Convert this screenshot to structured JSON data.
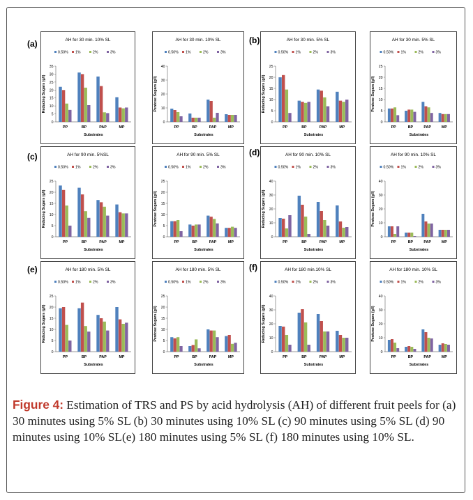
{
  "colors": {
    "s050": "#4f81bd",
    "s1": "#c0504d",
    "s2": "#9bbb59",
    "s3": "#8064a2"
  },
  "caption": {
    "label": "Figure 4:",
    "text": " Estimation of TRS and PS by acid hydrolysis (AH) of different fruit peels for (a) 30 minutes using 5% SL (b) 30 minutes using 10% SL (c) 90 minutes using 5% SL (d) 90 minutes using 10% SL(e) 180 minutes using 5% SL (f) 180 minutes using 10% SL."
  },
  "panel_labels": [
    "(a)",
    "(b)",
    "(c)",
    "(d)",
    "(e)",
    "(f)"
  ],
  "chart_data": [
    {
      "type": "bar",
      "title": "AH for 30 min. 10% SL",
      "ylabel": "Reducing Sugars (g/l)",
      "xlabel": "Substrates",
      "categories": [
        "PP",
        "BP",
        "PAP",
        "MP"
      ],
      "ylim": [
        0,
        35
      ],
      "yticks": [
        0,
        5,
        10,
        15,
        20,
        25,
        30,
        35
      ],
      "series": [
        {
          "name": "0.50%",
          "values": [
            22,
            31,
            28.5,
            15.5
          ]
        },
        {
          "name": "1%",
          "values": [
            20,
            30,
            22.5,
            9
          ]
        },
        {
          "name": "2%",
          "values": [
            11.5,
            21.5,
            6,
            8.5
          ]
        },
        {
          "name": "3%",
          "values": [
            7.5,
            10.5,
            5.5,
            9
          ]
        }
      ]
    },
    {
      "type": "bar",
      "title": "AH for 30 min. 10% SL",
      "ylabel": "Pentose Sugars (g/l)",
      "xlabel": "Substrates",
      "categories": [
        "PP",
        "BP",
        "PAP",
        "MP"
      ],
      "ylim": [
        0,
        40
      ],
      "yticks": [
        0,
        10,
        20,
        30,
        40
      ],
      "series": [
        {
          "name": "0.50%",
          "values": [
            9.5,
            6,
            16,
            5.5
          ]
        },
        {
          "name": "1%",
          "values": [
            8.5,
            3,
            15,
            5
          ]
        },
        {
          "name": "2%",
          "values": [
            7,
            3,
            3,
            5
          ]
        },
        {
          "name": "3%",
          "values": [
            4,
            3,
            6.5,
            5
          ]
        }
      ]
    },
    {
      "type": "bar",
      "title": "AH for 30 min.  5% SL",
      "ylabel": "Reducing Sugars (g/l)",
      "xlabel": "Substrates",
      "categories": [
        "PP",
        "BP",
        "PAP",
        "MP"
      ],
      "ylim": [
        0,
        25
      ],
      "yticks": [
        0,
        5,
        10,
        15,
        20,
        25
      ],
      "series": [
        {
          "name": "0.50%",
          "values": [
            20,
            9.5,
            14.5,
            13.5
          ]
        },
        {
          "name": "1%",
          "values": [
            21,
            9,
            14,
            9.5
          ]
        },
        {
          "name": "2%",
          "values": [
            14.5,
            8.5,
            11,
            9
          ]
        },
        {
          "name": "3%",
          "values": [
            4,
            9,
            7,
            10
          ]
        }
      ]
    },
    {
      "type": "bar",
      "title": "AH for 30 min.  5% SL",
      "ylabel": "Pentose Sugars (g/l)",
      "xlabel": "Substrates",
      "categories": [
        "PP",
        "BP",
        "PAP",
        "MP"
      ],
      "ylim": [
        0,
        25
      ],
      "yticks": [
        0,
        5,
        10,
        15,
        20,
        25
      ],
      "series": [
        {
          "name": "0.50%",
          "values": [
            6,
            5,
            9,
            4
          ]
        },
        {
          "name": "1%",
          "values": [
            6,
            5.5,
            7,
            3.5
          ]
        },
        {
          "name": "2%",
          "values": [
            6.5,
            5.5,
            6.5,
            3.5
          ]
        },
        {
          "name": "3%",
          "values": [
            3,
            4.5,
            4,
            3.5
          ]
        }
      ]
    },
    {
      "type": "bar",
      "title": "AH for 90 min. 5%SL",
      "ylabel": "Reducing Sugars (g/l)",
      "xlabel": "Substrates",
      "categories": [
        "PP",
        "BP",
        "PAP",
        "MP"
      ],
      "ylim": [
        0,
        25
      ],
      "yticks": [
        0,
        5,
        10,
        15,
        20,
        25
      ],
      "series": [
        {
          "name": "0.50%",
          "values": [
            23,
            22,
            16.5,
            14.5
          ]
        },
        {
          "name": "1%",
          "values": [
            21,
            19,
            15.5,
            11
          ]
        },
        {
          "name": "2%",
          "values": [
            14,
            11.5,
            13.5,
            10.5
          ]
        },
        {
          "name": "3%",
          "values": [
            5,
            8.5,
            9.5,
            10.5
          ]
        }
      ]
    },
    {
      "type": "bar",
      "title": "AH for 90 min.  5% SL",
      "ylabel": "Pentose Sugars (g/l)",
      "xlabel": "Substrates",
      "categories": [
        "PP",
        "BP",
        "PAP",
        "MP"
      ],
      "ylim": [
        0,
        25
      ],
      "yticks": [
        0,
        5,
        10,
        15,
        20,
        25
      ],
      "series": [
        {
          "name": "0.50%",
          "values": [
            7,
            5.5,
            9.5,
            4
          ]
        },
        {
          "name": "1%",
          "values": [
            7,
            5,
            9,
            4
          ]
        },
        {
          "name": "2%",
          "values": [
            7.5,
            5.5,
            8,
            4.5
          ]
        },
        {
          "name": "3%",
          "values": [
            2.5,
            5.5,
            6,
            4
          ]
        }
      ]
    },
    {
      "type": "bar",
      "title": "AH for 90 min.  10% SL",
      "ylabel": "Reducing Sugars (g/l)",
      "xlabel": "Substrates",
      "categories": [
        "PP",
        "BP",
        "PAP",
        "MP"
      ],
      "ylim": [
        0,
        40
      ],
      "yticks": [
        0,
        10,
        20,
        30,
        40
      ],
      "series": [
        {
          "name": "0.50%",
          "values": [
            13.5,
            29.5,
            25,
            22.5
          ]
        },
        {
          "name": "1%",
          "values": [
            13,
            23,
            18.5,
            11
          ]
        },
        {
          "name": "2%",
          "values": [
            6,
            14.5,
            12,
            6.5
          ]
        },
        {
          "name": "3%",
          "values": [
            15.5,
            2,
            8,
            7
          ]
        }
      ]
    },
    {
      "type": "bar",
      "title": "AH for 90 min.  10% SL",
      "ylabel": "Pentose Sugars (g/l)",
      "xlabel": "Substrates",
      "categories": [
        "PP",
        "BP",
        "PAP",
        "MP"
      ],
      "ylim": [
        0,
        40
      ],
      "yticks": [
        0,
        10,
        20,
        30,
        40
      ],
      "series": [
        {
          "name": "0.50%",
          "values": [
            7.5,
            3,
            16.5,
            5
          ]
        },
        {
          "name": "1%",
          "values": [
            7.5,
            3,
            11,
            5
          ]
        },
        {
          "name": "2%",
          "values": [
            2,
            3,
            9.5,
            5
          ]
        },
        {
          "name": "3%",
          "values": [
            7.5,
            0.5,
            9.5,
            5
          ]
        }
      ]
    },
    {
      "type": "bar",
      "title": "AH for 180 min.  5% SL",
      "ylabel": "Reducing Sugars (g/l)",
      "xlabel": "Substrates",
      "categories": [
        "PP",
        "BP",
        "PAP",
        "MP"
      ],
      "ylim": [
        0,
        25
      ],
      "yticks": [
        0,
        5,
        10,
        15,
        20,
        25
      ],
      "series": [
        {
          "name": "0.50%",
          "values": [
            19.5,
            19.5,
            16.5,
            20
          ]
        },
        {
          "name": "1%",
          "values": [
            20,
            22,
            15,
            14.5
          ]
        },
        {
          "name": "2%",
          "values": [
            12,
            11.5,
            13.5,
            12.5
          ]
        },
        {
          "name": "3%",
          "values": [
            5,
            9,
            9.5,
            13
          ]
        }
      ]
    },
    {
      "type": "bar",
      "title": "AH for 180 min.  5% SL",
      "ylabel": "Pentose Sugars (g/l)",
      "xlabel": "Substrates",
      "categories": [
        "PP",
        "BP",
        "PAP",
        "MP"
      ],
      "ylim": [
        0,
        25
      ],
      "yticks": [
        0,
        5,
        10,
        15,
        20,
        25
      ],
      "series": [
        {
          "name": "0.50%",
          "values": [
            6.5,
            2.5,
            10,
            7
          ]
        },
        {
          "name": "1%",
          "values": [
            6,
            3,
            9.5,
            7.5
          ]
        },
        {
          "name": "2%",
          "values": [
            6.5,
            5.5,
            9.5,
            3.5
          ]
        },
        {
          "name": "3%",
          "values": [
            2.5,
            1.5,
            6.5,
            4
          ]
        }
      ]
    },
    {
      "type": "bar",
      "title": "AH for 180 min.10% SL",
      "ylabel": "Reducing Sugars (g/l)",
      "xlabel": "Substrates",
      "categories": [
        "PP",
        "BP",
        "PAP",
        "MP"
      ],
      "ylim": [
        0,
        40
      ],
      "yticks": [
        0,
        10,
        20,
        30,
        40
      ],
      "series": [
        {
          "name": "0.50%",
          "values": [
            18.5,
            28,
            27,
            15
          ]
        },
        {
          "name": "1%",
          "values": [
            18,
            30.5,
            22,
            12
          ]
        },
        {
          "name": "2%",
          "values": [
            12,
            21,
            14.5,
            10
          ]
        },
        {
          "name": "3%",
          "values": [
            5,
            5,
            14.5,
            10
          ]
        }
      ]
    },
    {
      "type": "bar",
      "title": "AH for 180 min.  10% SL",
      "ylabel": "Pentose Sugars (g/l)",
      "xlabel": "Substrates",
      "categories": [
        "PP",
        "BP",
        "PAP",
        "MP"
      ],
      "ylim": [
        0,
        40
      ],
      "yticks": [
        0,
        10,
        20,
        30,
        40
      ],
      "series": [
        {
          "name": "0.50%",
          "values": [
            8.5,
            3.5,
            16,
            5
          ]
        },
        {
          "name": "1%",
          "values": [
            9,
            4,
            14,
            6
          ]
        },
        {
          "name": "2%",
          "values": [
            6.5,
            3.5,
            10,
            5.5
          ]
        },
        {
          "name": "3%",
          "values": [
            2.5,
            2,
            9.5,
            5
          ]
        }
      ]
    }
  ]
}
